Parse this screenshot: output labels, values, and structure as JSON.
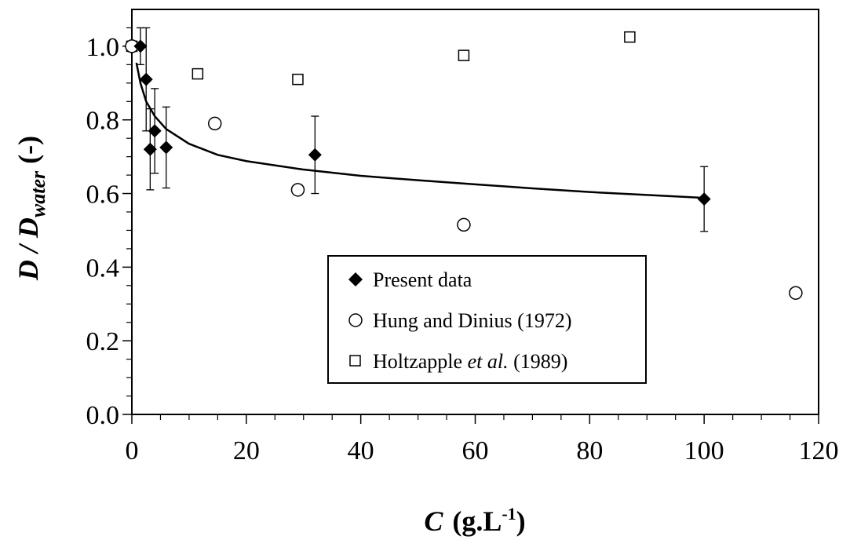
{
  "chart_data": {
    "type": "scatter",
    "xlabel": {
      "main": "C",
      "unit": "(g.L",
      "exp": "-1",
      "close": ")"
    },
    "ylabel": {
      "main": "D / D",
      "sub": "water",
      "suffix": " (-)"
    },
    "xlim": [
      0,
      120
    ],
    "ylim": [
      0,
      1.1
    ],
    "xticks": [
      "0",
      "20",
      "40",
      "60",
      "80",
      "100",
      "120"
    ],
    "yticks": [
      "0.0",
      "0.2",
      "0.4",
      "0.6",
      "0.8",
      "1.0"
    ],
    "grid": false,
    "legend_position": "bottom-center",
    "series": [
      {
        "name": "Present data",
        "marker": "diamond",
        "points": [
          {
            "x": 1.5,
            "y": 1.0,
            "err": 0.05
          },
          {
            "x": 2.5,
            "y": 0.91,
            "err": 0.14
          },
          {
            "x": 3.2,
            "y": 0.72,
            "err": 0.11
          },
          {
            "x": 4.0,
            "y": 0.77,
            "err": 0.115
          },
          {
            "x": 6.0,
            "y": 0.725,
            "err": 0.11
          },
          {
            "x": 32,
            "y": 0.705,
            "err": 0.105
          },
          {
            "x": 100,
            "y": 0.585,
            "err": 0.088
          }
        ]
      },
      {
        "name_main": "Hung and Dinius (1972)",
        "marker": "circle",
        "points": [
          {
            "x": 0,
            "y": 1.0
          },
          {
            "x": 14.5,
            "y": 0.79
          },
          {
            "x": 29,
            "y": 0.61
          },
          {
            "x": 58,
            "y": 0.515
          },
          {
            "x": 116,
            "y": 0.33
          }
        ]
      },
      {
        "name_parts": [
          "Holtzapple ",
          "et al.",
          " (1989)"
        ],
        "marker": "square",
        "points": [
          {
            "x": 0,
            "y": 1.0
          },
          {
            "x": 11.5,
            "y": 0.925
          },
          {
            "x": 29,
            "y": 0.91
          },
          {
            "x": 58,
            "y": 0.975
          },
          {
            "x": 87,
            "y": 1.025
          }
        ]
      }
    ],
    "fit_curve": {
      "description_shown": false,
      "x": [
        0.8,
        1.5,
        2.5,
        4,
        6,
        10,
        15,
        20,
        30,
        40,
        50,
        60,
        70,
        80,
        90,
        100
      ],
      "y": [
        0.955,
        0.9,
        0.85,
        0.81,
        0.775,
        0.735,
        0.705,
        0.688,
        0.665,
        0.648,
        0.636,
        0.625,
        0.614,
        0.604,
        0.596,
        0.588
      ]
    }
  }
}
